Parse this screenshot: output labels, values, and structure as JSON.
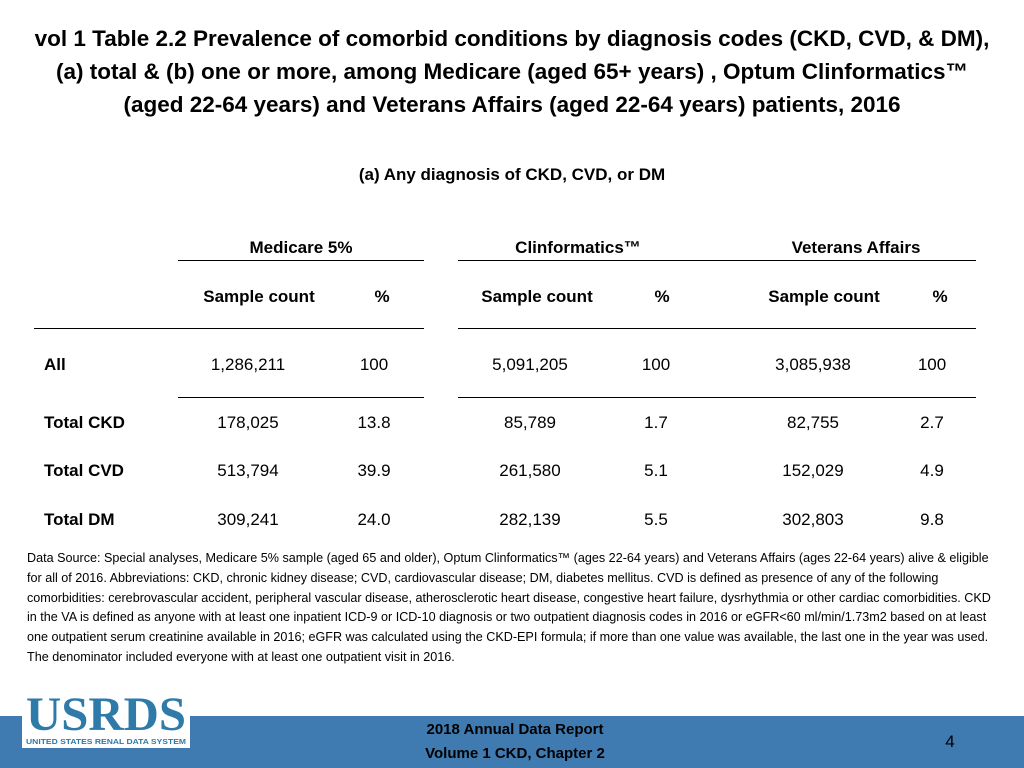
{
  "title": {
    "line1": "vol 1 Table 2.2 Prevalence of comorbid conditions by diagnosis codes (CKD, CVD, & DM),",
    "line2": "(a) total & (b) one or more, among Medicare (aged 65+ years) , Optum Clinformatics™",
    "line3": "(aged 22-64 years) and Veterans Affairs (aged 22-64 years) patients, 2016"
  },
  "subtitle": "(a) Any diagnosis of CKD, CVD, or DM",
  "table": {
    "groups": [
      "Medicare 5%",
      "Clinformatics™",
      "Veterans Affairs"
    ],
    "subheaders": [
      "Sample count",
      "%",
      "Sample count",
      "%",
      "Sample count",
      "%"
    ],
    "rows": [
      {
        "label": "All",
        "values": [
          "1,286,211",
          "100",
          "5,091,205",
          "100",
          "3,085,938",
          "100"
        ]
      },
      {
        "label": "Total CKD",
        "values": [
          "178,025",
          "13.8",
          "85,789",
          "1.7",
          "82,755",
          "2.7"
        ]
      },
      {
        "label": "Total CVD",
        "values": [
          "513,794",
          "39.9",
          "261,580",
          "5.1",
          "152,029",
          "4.9"
        ]
      },
      {
        "label": "Total DM",
        "values": [
          "309,241",
          "24.0",
          "282,139",
          "5.5",
          "302,803",
          "9.8"
        ]
      }
    ]
  },
  "note": "Data Source: Special analyses, Medicare 5% sample (aged 65 and older), Optum Clinformatics™ (ages 22-64 years) and Veterans Affairs (ages 22-64 years) alive & eligible for all of 2016. Abbreviations: CKD, chronic kidney disease; CVD, cardiovascular disease; DM, diabetes mellitus. CVD is defined as presence of any of the following comorbidities: cerebrovascular accident, peripheral vascular disease, atherosclerotic heart disease, congestive heart failure, dysrhythmia or other cardiac comorbidities. CKD in the VA is defined as anyone with at least one inpatient ICD-9 or ICD-10 diagnosis or two outpatient diagnosis codes in 2016 or eGFR<60 ml/min/1.73m2 based on at least one outpatient serum creatinine available in 2016; eGFR was calculated using the CKD-EPI formula; if more than one value was available, the last one in the year was used. The denominator included everyone with at least one outpatient visit in 2016.",
  "footer": {
    "logo_text": "USRDS",
    "logo_subtext": "UNITED STATES RENAL DATA SYSTEM",
    "report_line1": "2018 Annual Data Report",
    "report_line2": "Volume 1 CKD, Chapter 2",
    "page_number": "4",
    "bar_color": "#3f7ab0",
    "logo_color": "#2e7aa8"
  }
}
